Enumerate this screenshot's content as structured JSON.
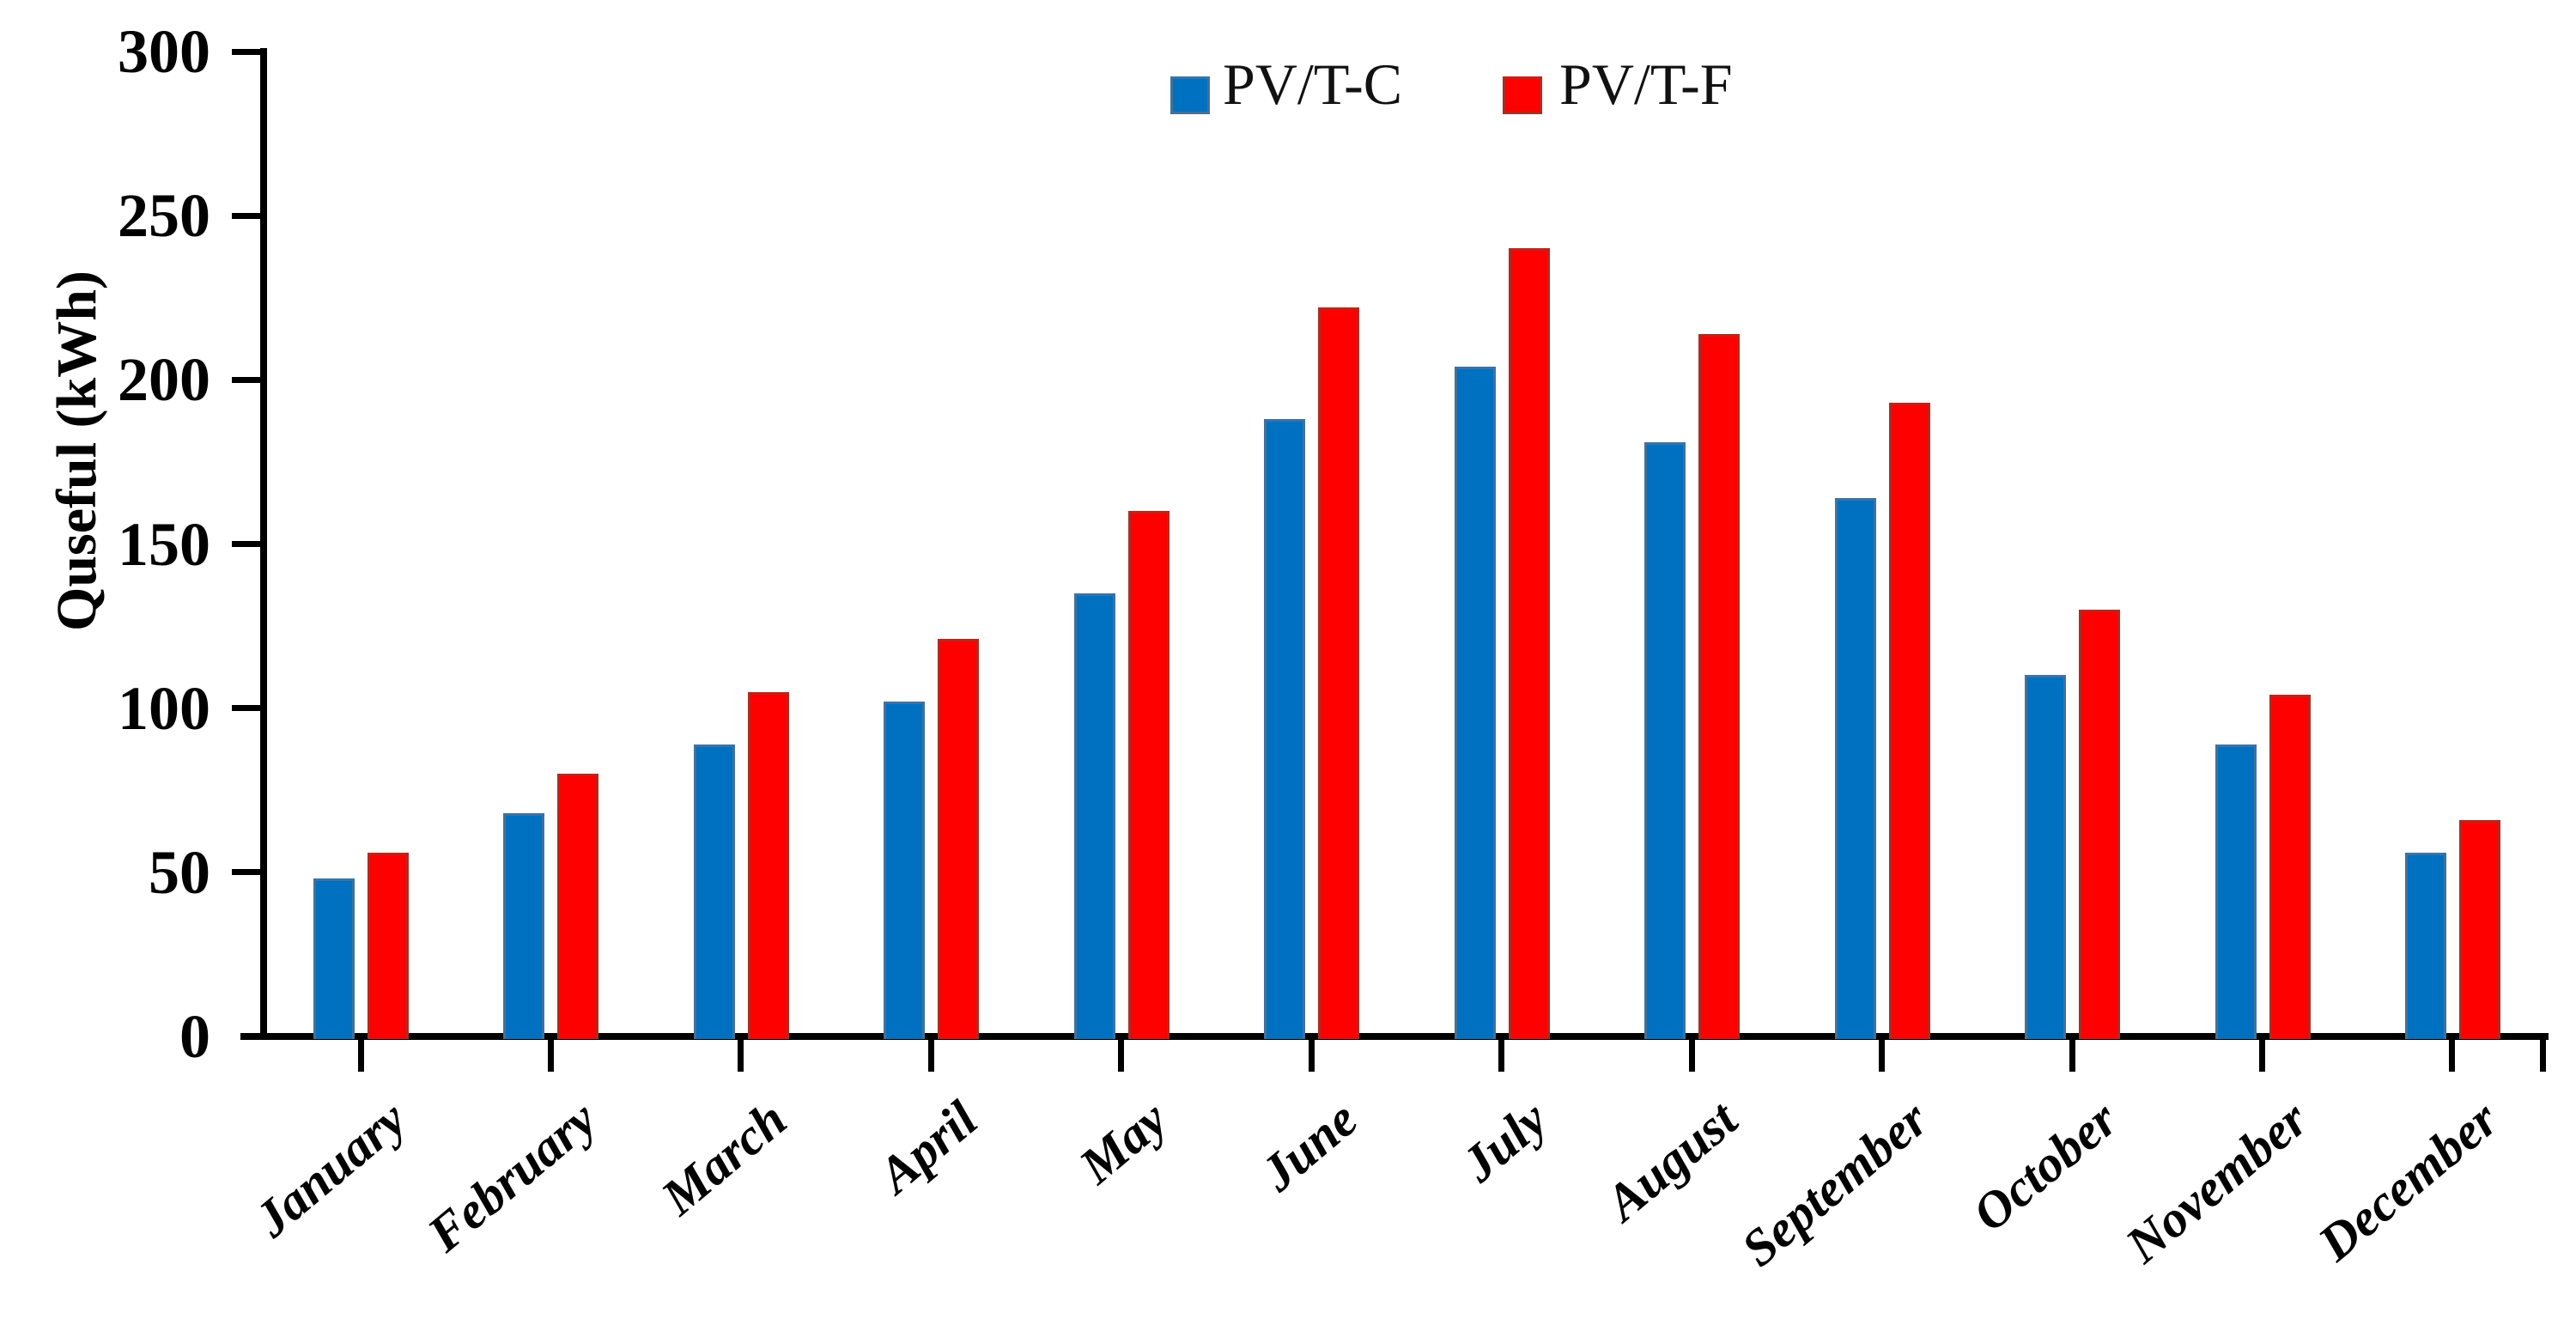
{
  "chart_data": {
    "type": "bar",
    "title": "",
    "xlabel": "",
    "ylabel": "Quseful (kWh)",
    "ylim": [
      0,
      300
    ],
    "yticks": [
      0,
      50,
      100,
      150,
      200,
      250,
      300
    ],
    "grid": false,
    "legend_position": "top-center",
    "categories": [
      "January",
      "February",
      "March",
      "April",
      "May",
      "June",
      "July",
      "August",
      "September",
      "October",
      "November",
      "December"
    ],
    "series": [
      {
        "name": "PV/T-C",
        "color": "#0070C0",
        "border_color": "#41719C",
        "values": [
          48,
          68,
          89,
          102,
          135,
          188,
          204,
          181,
          164,
          110,
          89,
          56
        ]
      },
      {
        "name": "PV/T-F",
        "color": "#FE0000",
        "border_color": "#B02A20",
        "values": [
          56,
          80,
          105,
          121,
          160,
          222,
          240,
          214,
          193,
          130,
          104,
          66
        ]
      }
    ],
    "axis_color": "#000000"
  }
}
